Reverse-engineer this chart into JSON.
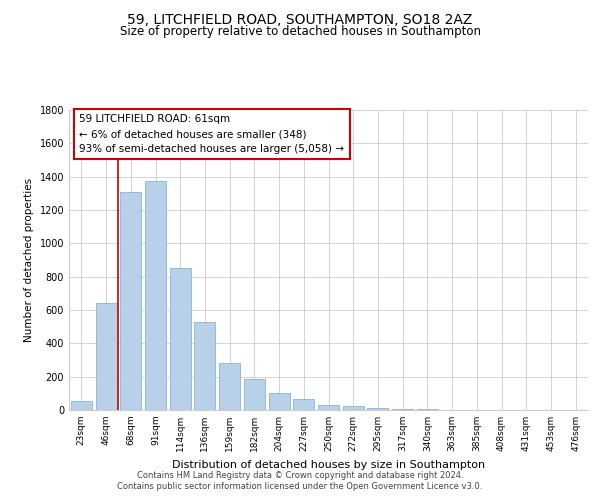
{
  "title": "59, LITCHFIELD ROAD, SOUTHAMPTON, SO18 2AZ",
  "subtitle": "Size of property relative to detached houses in Southampton",
  "xlabel": "Distribution of detached houses by size in Southampton",
  "ylabel": "Number of detached properties",
  "bar_labels": [
    "23sqm",
    "46sqm",
    "68sqm",
    "91sqm",
    "114sqm",
    "136sqm",
    "159sqm",
    "182sqm",
    "204sqm",
    "227sqm",
    "250sqm",
    "272sqm",
    "295sqm",
    "317sqm",
    "340sqm",
    "363sqm",
    "385sqm",
    "408sqm",
    "431sqm",
    "453sqm",
    "476sqm"
  ],
  "bar_values": [
    55,
    645,
    1310,
    1375,
    850,
    530,
    280,
    185,
    105,
    68,
    30,
    25,
    10,
    8,
    5,
    3,
    2,
    1,
    1,
    0,
    1
  ],
  "bar_color": "#b8d0e8",
  "bar_edge_color": "#7aaace",
  "vline_color": "#cc0000",
  "annotation_title": "59 LITCHFIELD ROAD: 61sqm",
  "annotation_line1": "← 6% of detached houses are smaller (348)",
  "annotation_line2": "93% of semi-detached houses are larger (5,058) →",
  "annotation_box_color": "#cc0000",
  "ylim": [
    0,
    1800
  ],
  "yticks": [
    0,
    200,
    400,
    600,
    800,
    1000,
    1200,
    1400,
    1600,
    1800
  ],
  "footer_line1": "Contains HM Land Registry data © Crown copyright and database right 2024.",
  "footer_line2": "Contains public sector information licensed under the Open Government Licence v3.0.",
  "background_color": "#ffffff",
  "grid_color": "#cccccc"
}
